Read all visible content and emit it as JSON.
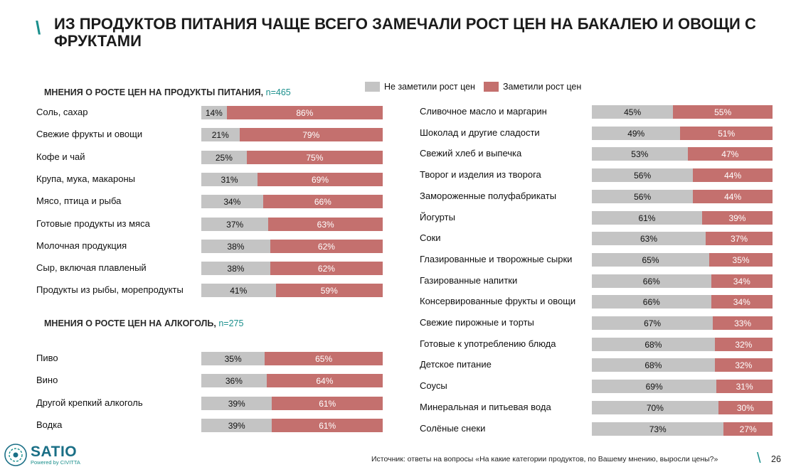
{
  "title": "ИЗ ПРОДУКТОВ ПИТАНИЯ ЧАЩЕ ВСЕГО ЗАМЕЧАЛИ РОСТ ЦЕН НА БАКАЛЕЮ И ОВОЩИ С ФРУКТАМИ",
  "title_slash": "\\",
  "legend": {
    "not_noticed": "Не заметили рост цен",
    "noticed": "Заметили рост цен"
  },
  "colors": {
    "not_noticed": "#c4c4c4",
    "noticed": "#c4706e",
    "accent": "#1a8f8c"
  },
  "food_section": {
    "title": "МНЕНИЯ О РОСТЕ ЦЕН НА ПРОДУКТЫ ПИТАНИЯ,",
    "n": "n=465"
  },
  "alcohol_section": {
    "title": "МНЕНИЯ О РОСТЕ ЦЕН НА АЛКОГОЛЬ,",
    "n": "n=275"
  },
  "chart_data": [
    {
      "type": "bar",
      "stacked": true,
      "orientation": "horizontal",
      "categories": [
        "Соль, сахар",
        "Свежие фрукты и овощи",
        "Кофе и чай",
        "Крупа, мука, макароны",
        "Мясо, птица и рыба",
        "Готовые продукты из мяса",
        "Молочная продукция",
        "Сыр, включая плавленый",
        "Продукты из рыбы, морепродукты"
      ],
      "series": [
        {
          "name": "Не заметили рост цен",
          "values": [
            14,
            21,
            25,
            31,
            34,
            37,
            38,
            38,
            41
          ]
        },
        {
          "name": "Заметили рост цен",
          "values": [
            86,
            79,
            75,
            69,
            66,
            63,
            62,
            62,
            59
          ]
        }
      ],
      "unit": "%"
    },
    {
      "type": "bar",
      "stacked": true,
      "orientation": "horizontal",
      "categories": [
        "Пиво",
        "Вино",
        "Другой крепкий алкоголь",
        "Водка"
      ],
      "series": [
        {
          "name": "Не заметили рост цен",
          "values": [
            35,
            36,
            39,
            39
          ]
        },
        {
          "name": "Заметили рост цен",
          "values": [
            65,
            64,
            61,
            61
          ]
        }
      ],
      "unit": "%"
    },
    {
      "type": "bar",
      "stacked": true,
      "orientation": "horizontal",
      "categories": [
        "Сливочное масло и маргарин",
        "Шоколад и другие сладости",
        "Свежий хлеб и выпечка",
        "Творог и изделия из творога",
        "Замороженные полуфабрикаты",
        "Йогурты",
        "Соки",
        "Глазированные и творожные сырки",
        "Газированные напитки",
        "Консервированные фрукты и овощи",
        "Свежие пирожные и торты",
        "Готовые к употреблению блюда",
        "Детское питание",
        "Соусы",
        "Минеральная и питьевая вода",
        "Солёные снеки"
      ],
      "series": [
        {
          "name": "Не заметили рост цен",
          "values": [
            45,
            49,
            53,
            56,
            56,
            61,
            63,
            65,
            66,
            66,
            67,
            68,
            68,
            69,
            70,
            73
          ]
        },
        {
          "name": "Заметили рост цен",
          "values": [
            55,
            51,
            47,
            44,
            44,
            39,
            37,
            35,
            34,
            34,
            33,
            32,
            32,
            31,
            30,
            27
          ]
        }
      ],
      "unit": "%"
    }
  ],
  "footer": {
    "logo": "SATIO",
    "logo_sub": "Powered by CIVITTA",
    "source": "Источник: ответы на вопросы «На какие категории продуктов, по Вашему мнению, выросли цены?»",
    "page_number": "26",
    "page_slash": "\\"
  }
}
